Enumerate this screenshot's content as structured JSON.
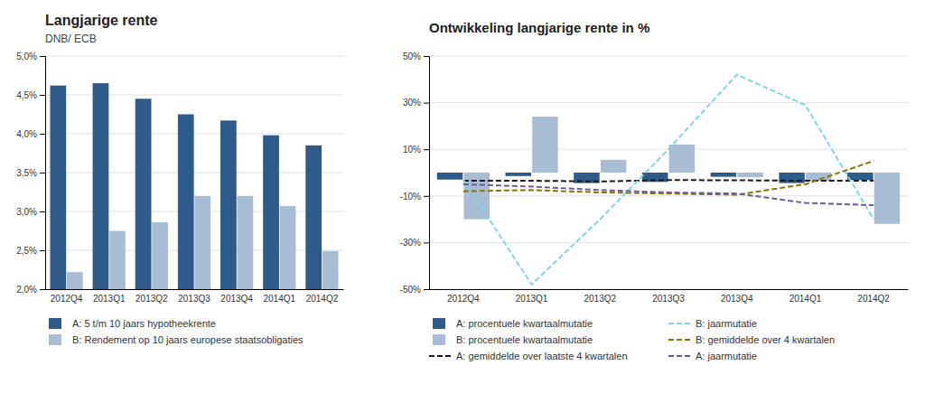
{
  "chart_data": [
    {
      "type": "bar",
      "title": "Langjarige rente",
      "subtitle": "DNB/ ECB",
      "categories": [
        "2012Q4",
        "2013Q1",
        "2013Q2",
        "2013Q3",
        "2013Q4",
        "2014Q1",
        "2014Q2"
      ],
      "series": [
        {
          "name": "A: 5 t/m 10 jaars hypotheekrente",
          "color": "#2E5B8A",
          "values": [
            4.62,
            4.65,
            4.45,
            4.25,
            4.17,
            3.98,
            3.85
          ]
        },
        {
          "name": "B: Rendement op 10 jaars europese staatsobligaties",
          "color": "#A8BDD4",
          "values": [
            2.22,
            2.75,
            2.86,
            3.2,
            3.2,
            3.07,
            2.49
          ]
        }
      ],
      "ylim": [
        2.0,
        5.0
      ],
      "yticks": [
        {
          "value": 2.0,
          "label": "2,0%"
        },
        {
          "value": 2.5,
          "label": "2,5%"
        },
        {
          "value": 3.0,
          "label": "3,0%"
        },
        {
          "value": 3.5,
          "label": "3,5%"
        },
        {
          "value": 4.0,
          "label": "4,0%"
        },
        {
          "value": 4.5,
          "label": "4,5%"
        },
        {
          "value": 5.0,
          "label": "5,0%"
        }
      ],
      "grid": true,
      "legend": "bottom"
    },
    {
      "type": "bar",
      "title": "Ontwikkeling langjarige rente in %",
      "categories": [
        "2012Q4",
        "2013Q1",
        "2013Q2",
        "2013Q3",
        "2013Q4",
        "2014Q1",
        "2014Q2"
      ],
      "series": [
        {
          "name": "A: procentuele kwartaalmutatie",
          "type": "bar",
          "color": "#2E5B8A",
          "values": [
            -3.0,
            -1.5,
            -4.5,
            -4.0,
            -1.8,
            -4.5,
            -3.2
          ]
        },
        {
          "name": "B: procentuele kwartaalmutatie",
          "type": "bar",
          "color": "#A8BDD4",
          "values": [
            -20.0,
            24.0,
            5.5,
            12.0,
            -2.0,
            -3.5,
            -22.0
          ]
        },
        {
          "name": "A: gemiddelde over laatste 4 kwartalen",
          "type": "line",
          "line_style": "dashed",
          "color": "#1a1a1a",
          "values": [
            -3.5,
            -3.5,
            -3.8,
            -3.2,
            -3.3,
            -3.5,
            -3.5
          ]
        },
        {
          "name": "B: jaarmutatie",
          "type": "line",
          "line_style": "dashed",
          "color": "#7FD4E8",
          "values": [
            -3.0,
            -48.0,
            -20.0,
            10.0,
            42.0,
            29.0,
            -20.0
          ]
        },
        {
          "name": "B: gemiddelde over 4 kwartalen",
          "type": "line",
          "line_style": "dashed",
          "color": "#8B7500",
          "values": [
            -8.0,
            -7.5,
            -8.5,
            -9.0,
            -9.5,
            -5.0,
            5.0
          ]
        },
        {
          "name": "A: jaarmutatie",
          "type": "line",
          "line_style": "dashed",
          "color": "#6B5B9B",
          "values": [
            -5.0,
            -6.0,
            -7.5,
            -8.5,
            -9.0,
            -13.0,
            -14.0
          ]
        }
      ],
      "ylim": [
        -50,
        50
      ],
      "yticks": [
        {
          "value": -50,
          "label": "-50%"
        },
        {
          "value": -30,
          "label": "-30%"
        },
        {
          "value": -10,
          "label": "-10%"
        },
        {
          "value": 10,
          "label": "10%"
        },
        {
          "value": 30,
          "label": "30%"
        },
        {
          "value": 50,
          "label": "50%"
        }
      ],
      "grid": true,
      "legend": "bottom"
    }
  ]
}
